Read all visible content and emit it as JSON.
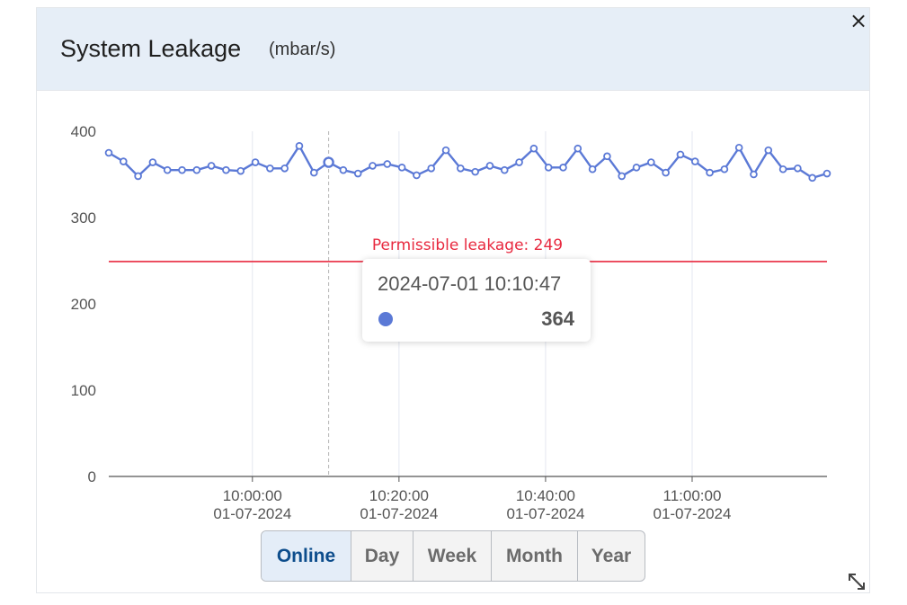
{
  "panel": {
    "title": "System Leakage",
    "unit": "(mbar/s)",
    "close_label": "×"
  },
  "tooltip": {
    "date": "2024-07-01 10:10:47",
    "value": "364"
  },
  "range_buttons": [
    {
      "label": "Online",
      "active": true
    },
    {
      "label": "Day",
      "active": false
    },
    {
      "label": "Week",
      "active": false
    },
    {
      "label": "Month",
      "active": false
    },
    {
      "label": "Year",
      "active": false
    }
  ],
  "icons": {
    "close": "close-icon",
    "resize": "resize-icon"
  },
  "colors": {
    "series": "#5b79d6",
    "threshold": "#e8293f",
    "header_bg": "#e6eef7",
    "active_button_text": "#0d4d8c"
  },
  "chart_data": {
    "type": "line",
    "y_ticks": [
      0,
      100,
      200,
      300,
      400
    ],
    "ylim": [
      0,
      400
    ],
    "x_ticks": [
      {
        "time": "10:00:00",
        "date": "01-07-2024",
        "index": 9.8
      },
      {
        "time": "10:20:00",
        "date": "01-07-2024",
        "index": 19.8
      },
      {
        "time": "10:40:00",
        "date": "01-07-2024",
        "index": 29.8
      },
      {
        "time": "11:00:00",
        "date": "01-07-2024",
        "index": 39.8
      }
    ],
    "series": [
      {
        "values": [
          375,
          365,
          348,
          364,
          355,
          355,
          355,
          360,
          355,
          354,
          364,
          357,
          357,
          383,
          352,
          364,
          355,
          351,
          360,
          362,
          358,
          349,
          357,
          378,
          357,
          353,
          360,
          355,
          364,
          380,
          358,
          358,
          380,
          356,
          371,
          348,
          358,
          364,
          352,
          373,
          365,
          352,
          356,
          381,
          350,
          378,
          356,
          357,
          346,
          351
        ]
      }
    ],
    "threshold": {
      "value": 249,
      "label": "Permissible leakage: 249"
    },
    "hover_index": 15,
    "grid": "vertical"
  }
}
